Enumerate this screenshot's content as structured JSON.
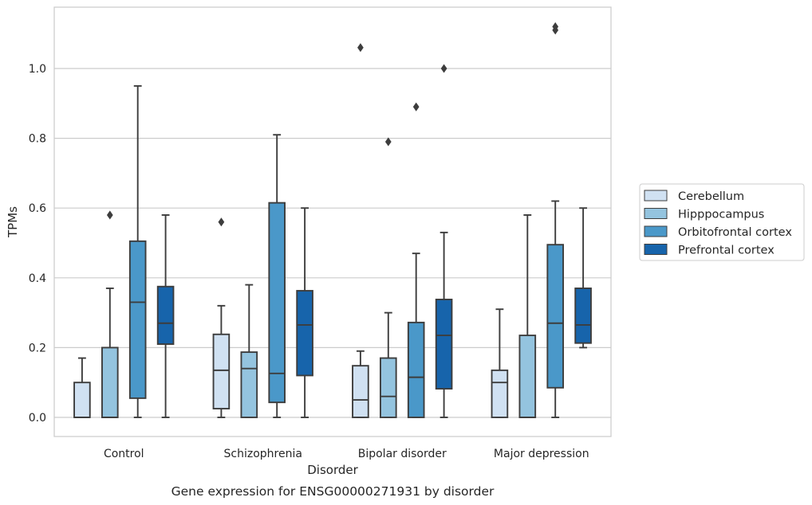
{
  "chart_data": {
    "type": "box",
    "caption": "Gene expression for ENSG00000271931 by disorder",
    "xlabel": "Disorder",
    "ylabel": "TPMs",
    "ylim": [
      -0.055,
      1.175
    ],
    "yticks": [
      0.0,
      0.2,
      0.4,
      0.6,
      0.8,
      1.0
    ],
    "ytick_labels": [
      "0.0",
      "0.2",
      "0.4",
      "0.6",
      "0.8",
      "1.0"
    ],
    "grid": true,
    "legend_position": "right",
    "categories": [
      "Control",
      "Schizophrenia",
      "Bipolar disorder",
      "Major depression"
    ],
    "series": [
      {
        "name": "Cerebellum",
        "color": "#d0e1f2",
        "boxes": [
          {
            "whisker_low": 0.0,
            "q1": 0.0,
            "median": 0.0,
            "q3": 0.1,
            "whisker_high": 0.17,
            "outliers": []
          },
          {
            "whisker_low": 0.0,
            "q1": 0.025,
            "median": 0.135,
            "q3": 0.238,
            "whisker_high": 0.32,
            "outliers": [
              0.56
            ]
          },
          {
            "whisker_low": 0.0,
            "q1": 0.0,
            "median": 0.05,
            "q3": 0.148,
            "whisker_high": 0.19,
            "outliers": [
              1.06
            ]
          },
          {
            "whisker_low": 0.0,
            "q1": 0.0,
            "median": 0.1,
            "q3": 0.135,
            "whisker_high": 0.31,
            "outliers": []
          }
        ]
      },
      {
        "name": "Hipppocampus",
        "color": "#94c4df",
        "boxes": [
          {
            "whisker_low": 0.0,
            "q1": 0.0,
            "median": 0.0,
            "q3": 0.2,
            "whisker_high": 0.37,
            "outliers": [
              0.58
            ]
          },
          {
            "whisker_low": 0.0,
            "q1": 0.0,
            "median": 0.14,
            "q3": 0.187,
            "whisker_high": 0.38,
            "outliers": []
          },
          {
            "whisker_low": 0.0,
            "q1": 0.0,
            "median": 0.06,
            "q3": 0.17,
            "whisker_high": 0.3,
            "outliers": [
              0.79
            ]
          },
          {
            "whisker_low": 0.0,
            "q1": 0.0,
            "median": 0.0,
            "q3": 0.235,
            "whisker_high": 0.58,
            "outliers": []
          }
        ]
      },
      {
        "name": "Orbitofrontal cortex",
        "color": "#4a98c9",
        "boxes": [
          {
            "whisker_low": 0.0,
            "q1": 0.055,
            "median": 0.33,
            "q3": 0.505,
            "whisker_high": 0.95,
            "outliers": []
          },
          {
            "whisker_low": 0.0,
            "q1": 0.043,
            "median": 0.126,
            "q3": 0.615,
            "whisker_high": 0.81,
            "outliers": []
          },
          {
            "whisker_low": 0.0,
            "q1": 0.0,
            "median": 0.115,
            "q3": 0.272,
            "whisker_high": 0.47,
            "outliers": [
              0.89
            ]
          },
          {
            "whisker_low": 0.0,
            "q1": 0.085,
            "median": 0.27,
            "q3": 0.495,
            "whisker_high": 0.62,
            "outliers": [
              1.11,
              1.12
            ]
          }
        ]
      },
      {
        "name": "Prefrontal cortex",
        "color": "#1764ab",
        "boxes": [
          {
            "whisker_low": 0.0,
            "q1": 0.21,
            "median": 0.27,
            "q3": 0.375,
            "whisker_high": 0.58,
            "outliers": []
          },
          {
            "whisker_low": 0.0,
            "q1": 0.12,
            "median": 0.265,
            "q3": 0.363,
            "whisker_high": 0.6,
            "outliers": []
          },
          {
            "whisker_low": 0.0,
            "q1": 0.082,
            "median": 0.235,
            "q3": 0.338,
            "whisker_high": 0.53,
            "outliers": [
              1.0
            ]
          },
          {
            "whisker_low": 0.2,
            "q1": 0.213,
            "median": 0.265,
            "q3": 0.37,
            "whisker_high": 0.6,
            "outliers": []
          }
        ]
      }
    ]
  }
}
